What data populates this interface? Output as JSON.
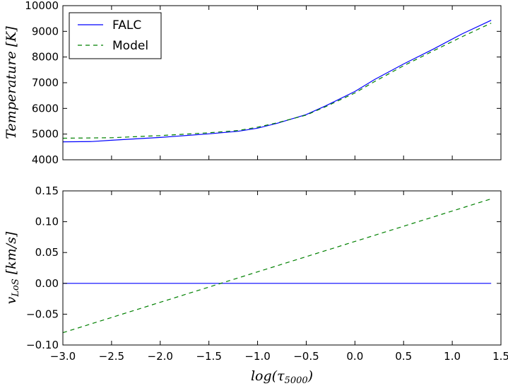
{
  "chart_data": [
    {
      "type": "line",
      "ylabel": "Temperature [K]",
      "xlim": [
        -3.0,
        1.5
      ],
      "ylim": [
        4000,
        10000
      ],
      "x_ticks": [
        "−3.0",
        "−2.5",
        "−2.0",
        "−1.5",
        "−1.0",
        "−0.5",
        "0.0",
        "0.5",
        "1.0",
        "1.5"
      ],
      "y_ticks": [
        "4000",
        "5000",
        "6000",
        "7000",
        "8000",
        "9000",
        "10000"
      ],
      "grid": false,
      "legend": {
        "placement": "top-left",
        "entries": [
          "FALC",
          "Model"
        ]
      },
      "series": [
        {
          "name": "FALC",
          "color": "#0000ff",
          "style": "solid",
          "x": [
            -3.0,
            -2.7,
            -2.5,
            -2.0,
            -1.5,
            -1.2,
            -1.0,
            -0.8,
            -0.5,
            -0.3,
            0.0,
            0.2,
            0.5,
            0.8,
            1.1,
            1.4
          ],
          "y": [
            4700,
            4710,
            4760,
            4870,
            5010,
            5110,
            5230,
            5420,
            5760,
            6100,
            6660,
            7120,
            7730,
            8300,
            8900,
            9430
          ]
        },
        {
          "name": "Model",
          "color": "#008000",
          "style": "dashed",
          "x": [
            -3.0,
            -2.5,
            -2.0,
            -1.5,
            -1.2,
            -1.0,
            -0.8,
            -0.5,
            -0.3,
            0.0,
            0.2,
            0.5,
            0.8,
            1.1,
            1.4
          ],
          "y": [
            4840,
            4860,
            4940,
            5050,
            5140,
            5270,
            5440,
            5740,
            6070,
            6600,
            7040,
            7660,
            8230,
            8790,
            9320
          ]
        }
      ]
    },
    {
      "type": "line",
      "xlabel": "log(τ5000)",
      "ylabel": "vLoS [km/s]",
      "xlim": [
        -3.0,
        1.5
      ],
      "ylim": [
        -0.1,
        0.15
      ],
      "x_ticks": [
        "−3.0",
        "−2.5",
        "−2.0",
        "−1.5",
        "−1.0",
        "−0.5",
        "0.0",
        "0.5",
        "1.0",
        "1.5"
      ],
      "y_ticks": [
        "−0.10",
        "−0.05",
        "0.00",
        "0.05",
        "0.10",
        "0.15"
      ],
      "grid": false,
      "series": [
        {
          "name": "FALC",
          "color": "#0000ff",
          "style": "solid",
          "x": [
            -3.0,
            1.4
          ],
          "y": [
            0.0,
            0.0
          ]
        },
        {
          "name": "Model",
          "color": "#008000",
          "style": "dashed",
          "x": [
            -3.0,
            1.4
          ],
          "y": [
            -0.08,
            0.137
          ]
        }
      ]
    }
  ]
}
